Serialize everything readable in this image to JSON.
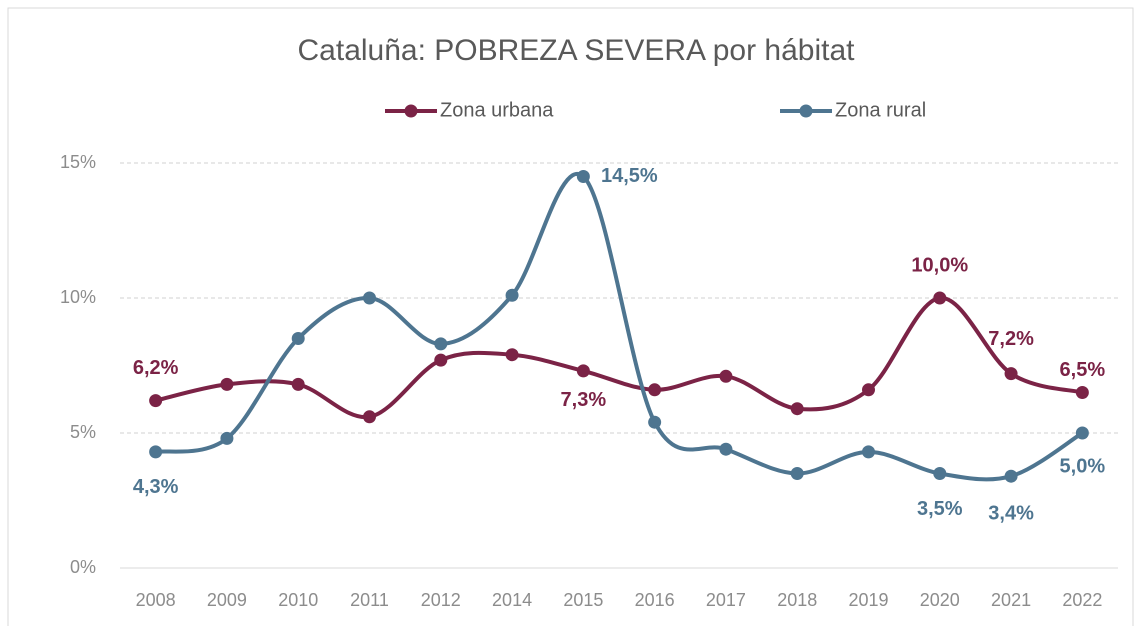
{
  "chart_data": {
    "type": "line",
    "title": "Cataluña: POBREZA SEVERA por hábitat",
    "categories": [
      "2008",
      "2009",
      "2010",
      "2011",
      "2012",
      "2014",
      "2015",
      "2016",
      "2017",
      "2018",
      "2019",
      "2020",
      "2021",
      "2022"
    ],
    "series": [
      {
        "name": "Zona urbana",
        "color": "#7b2346",
        "values": [
          6.2,
          6.8,
          6.8,
          5.6,
          7.7,
          7.9,
          7.3,
          6.6,
          7.1,
          5.9,
          6.6,
          10.0,
          7.2,
          6.5
        ],
        "value_labels": [
          "6,2%",
          null,
          null,
          null,
          null,
          null,
          "7,3%",
          null,
          null,
          null,
          null,
          "10,0%",
          "7,2%",
          "6,5%"
        ]
      },
      {
        "name": "Zona rural",
        "color": "#4e7590",
        "values": [
          4.3,
          4.8,
          8.5,
          10.0,
          8.3,
          10.1,
          14.5,
          5.4,
          4.4,
          3.5,
          4.3,
          3.5,
          3.4,
          5.0
        ],
        "value_labels": [
          "4,3%",
          null,
          null,
          null,
          null,
          null,
          "14,5%",
          null,
          null,
          null,
          null,
          "3,5%",
          "3,4%",
          "5,0%"
        ]
      }
    ],
    "ylim": [
      0,
      15
    ],
    "yticks": [
      {
        "value": 0,
        "label": "0%"
      },
      {
        "value": 5,
        "label": "5%"
      },
      {
        "value": 10,
        "label": "10%"
      },
      {
        "value": 15,
        "label": "15%"
      }
    ],
    "grid": true,
    "legend": "top",
    "smooth": true
  }
}
